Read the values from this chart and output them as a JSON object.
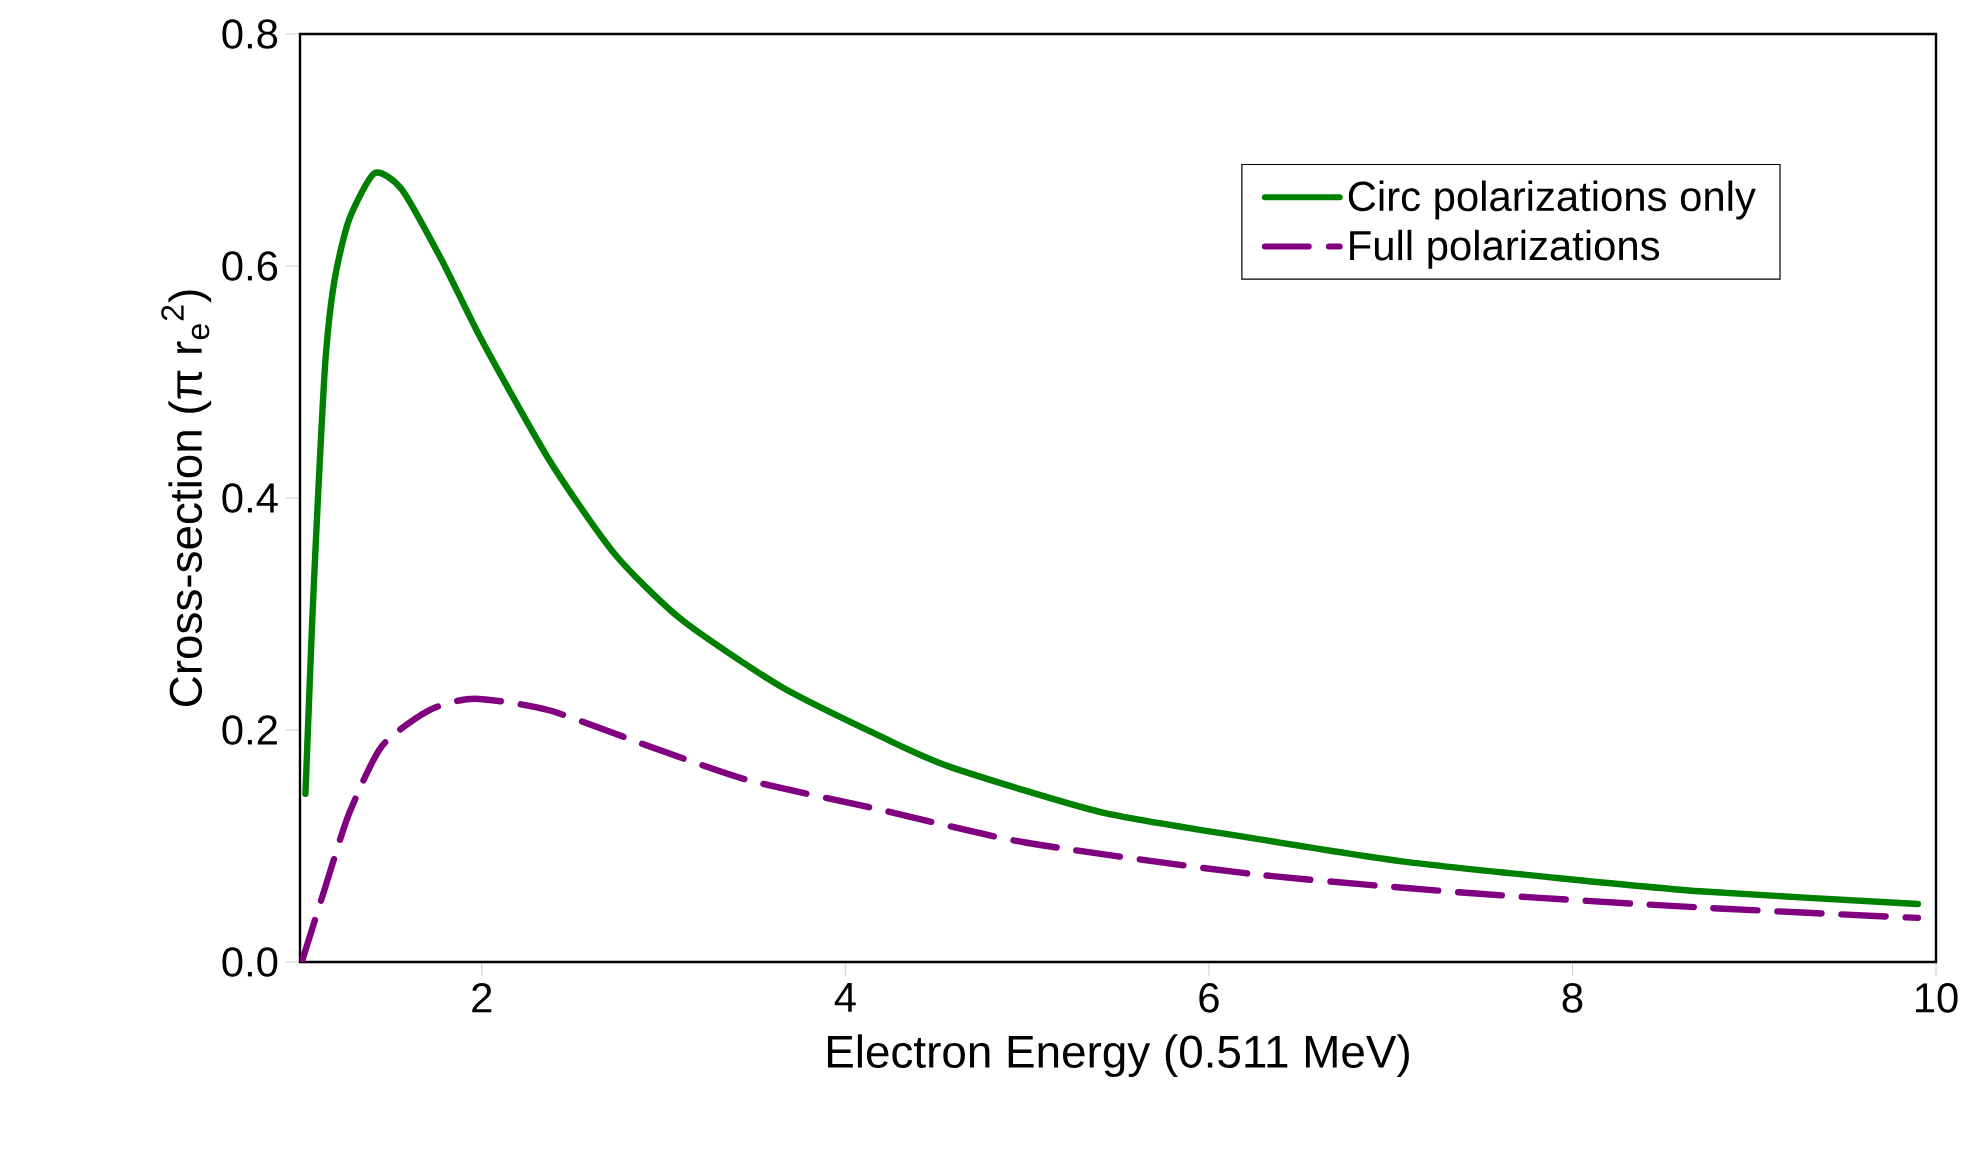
{
  "chart_data": {
    "type": "line",
    "xlabel": "Electron Energy (0.511 MeV)",
    "ylabel": "Cross-section (π r$_{e}$$^{2}$)",
    "xlim": [
      1,
      10
    ],
    "ylim": [
      0,
      0.8
    ],
    "xticks": [
      2,
      4,
      6,
      8,
      10
    ],
    "yticks": [
      {
        "value": 0,
        "label": "0.0"
      },
      0.2,
      0.4,
      0.6,
      0.8
    ],
    "legend": "top right",
    "grid": false,
    "series": [
      {
        "name": "Circ polarizations only",
        "color": "#008000",
        "line_style": "solid",
        "x": [
          1.03,
          1.066,
          1.1,
          1.14,
          1.19,
          1.27,
          1.41,
          1.56,
          1.78,
          2.0,
          2.37,
          2.73,
          3.1,
          3.65,
          4.2,
          4.58,
          5.41,
          6.23,
          7.05,
          7.88,
          8.7,
          9.9
        ],
        "values": [
          0.145,
          0.29,
          0.404,
          0.519,
          0.588,
          0.64,
          0.68,
          0.666,
          0.605,
          0.536,
          0.433,
          0.352,
          0.295,
          0.237,
          0.194,
          0.168,
          0.129,
          0.107,
          0.087,
          0.073,
          0.061,
          0.05
        ]
      },
      {
        "name": "Full polarizations",
        "color": "#800080",
        "line_style": "dashed",
        "x": [
          1.01,
          1.14,
          1.27,
          1.45,
          1.71,
          1.96,
          2.37,
          2.92,
          3.46,
          4.2,
          4.99,
          6.23,
          7.47,
          8.7,
          9.9
        ],
        "values": [
          0.0,
          0.065,
          0.128,
          0.186,
          0.217,
          0.227,
          0.217,
          0.186,
          0.157,
          0.131,
          0.103,
          0.076,
          0.059,
          0.047,
          0.038
        ]
      }
    ]
  }
}
